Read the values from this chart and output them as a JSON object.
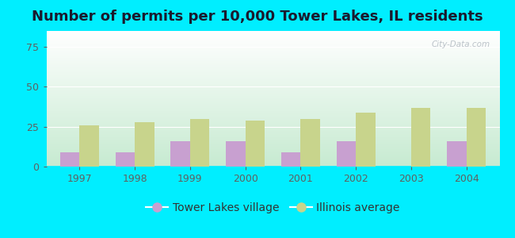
{
  "title": "Number of permits per 10,000 Tower Lakes, IL residents",
  "years": [
    1997,
    1998,
    1999,
    2000,
    2001,
    2002,
    2003,
    2004
  ],
  "tower_lakes": [
    9,
    9,
    16,
    16,
    9,
    16,
    0,
    16
  ],
  "illinois_avg": [
    26,
    28,
    30,
    29,
    30,
    34,
    37,
    37
  ],
  "tower_color": "#c8a0d0",
  "illinois_color": "#c8d48c",
  "bg_outer": "#00eeff",
  "ylim": [
    0,
    85
  ],
  "yticks": [
    0,
    25,
    50,
    75
  ],
  "bar_width": 0.35,
  "title_fontsize": 13,
  "tick_fontsize": 9,
  "legend_fontsize": 10,
  "watermark": "City-Data.com"
}
